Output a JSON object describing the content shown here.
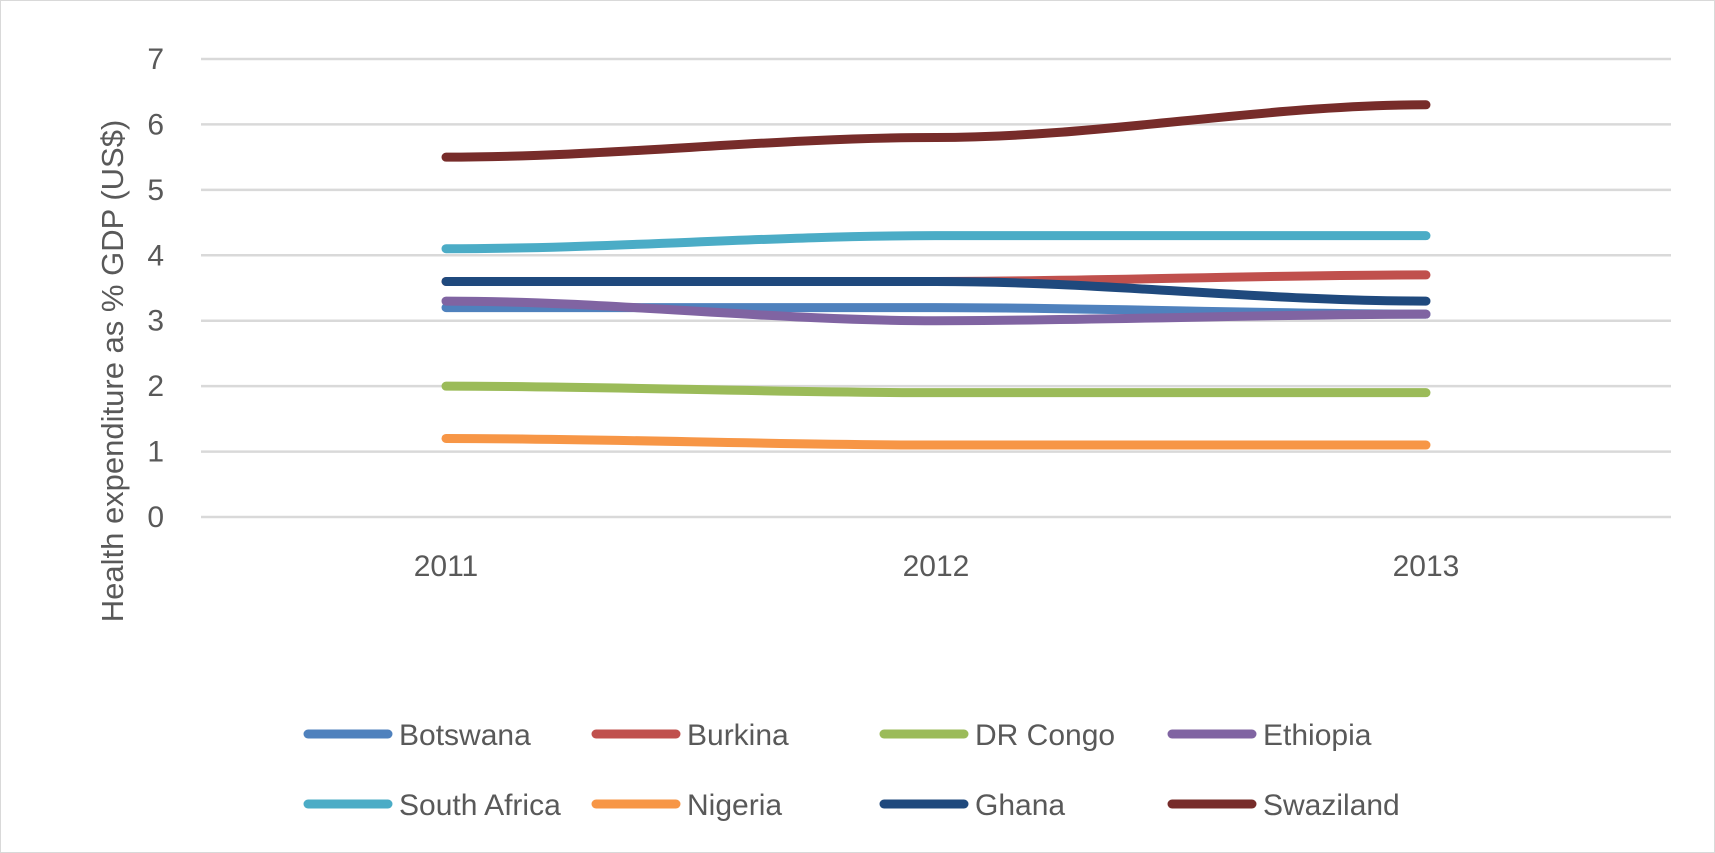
{
  "chart_data": {
    "type": "line",
    "title": "",
    "xlabel": "",
    "ylabel": "Health expenditure as % GDP (US$)",
    "categories": [
      "2011",
      "2012",
      "2013"
    ],
    "ylim": [
      0,
      7
    ],
    "yticks": [
      0,
      1,
      2,
      3,
      4,
      5,
      6,
      7
    ],
    "grid": true,
    "legend_position": "bottom",
    "series": [
      {
        "name": "Botswana",
        "color": "#4f81bd",
        "values": [
          3.2,
          3.2,
          3.1
        ]
      },
      {
        "name": "Burkina",
        "color": "#c0504d",
        "values": [
          3.6,
          3.6,
          3.7
        ]
      },
      {
        "name": "DR Congo",
        "color": "#9bbb59",
        "values": [
          2.0,
          1.9,
          1.9
        ]
      },
      {
        "name": "Ethiopia",
        "color": "#8064a2",
        "values": [
          3.3,
          3.0,
          3.1
        ]
      },
      {
        "name": "South Africa",
        "color": "#4bacc6",
        "values": [
          4.1,
          4.3,
          4.3
        ]
      },
      {
        "name": "Nigeria",
        "color": "#f79646",
        "values": [
          1.2,
          1.1,
          1.1
        ]
      },
      {
        "name": "Ghana",
        "color": "#1f497d",
        "values": [
          3.6,
          3.6,
          3.3
        ]
      },
      {
        "name": "Swaziland",
        "color": "#772c2a",
        "values": [
          5.5,
          5.8,
          6.3
        ]
      }
    ]
  }
}
